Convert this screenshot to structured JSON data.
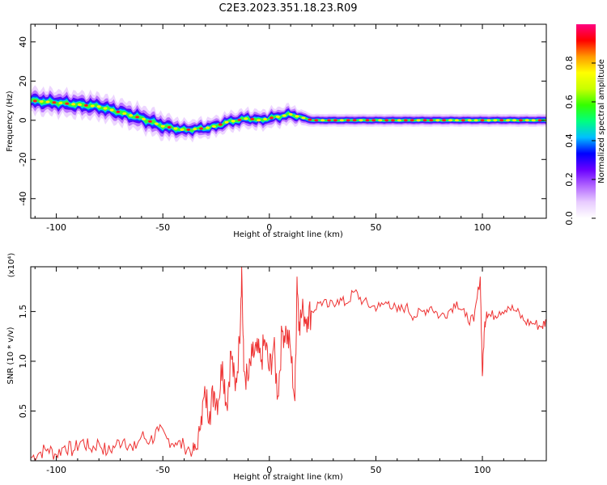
{
  "figure": {
    "title": "C2E3.2023.351.18.23.R09"
  },
  "colors": {
    "snr_line": "#ee3333",
    "frame": "#000000",
    "background": "#ffffff",
    "colormap": [
      "#ffffff",
      "#e8ccff",
      "#b266ff",
      "#6a00ff",
      "#0000ff",
      "#00bfff",
      "#00ff80",
      "#33ff00",
      "#c8ff00",
      "#ffff00",
      "#ff9900",
      "#ff0000",
      "#ff0080"
    ]
  },
  "chart_data": [
    {
      "type": "heatmap",
      "xlabel": "Height of straight line (km)",
      "ylabel": "Frequency (Hz)",
      "xlim": [
        -112,
        130
      ],
      "ylim": [
        -50,
        49
      ],
      "xticks": [
        -100,
        -50,
        0,
        50,
        100
      ],
      "xtick_labels": [
        "-100",
        "-50",
        "0",
        "50",
        "100"
      ],
      "yticks": [
        -40,
        -20,
        0,
        20,
        40
      ],
      "ytick_labels": [
        "-40",
        "-20",
        "0",
        "20",
        "40"
      ],
      "colorbar": {
        "label": "Normalized spectral amplitude",
        "range": [
          0,
          1
        ],
        "ticks": [
          0.0,
          0.2,
          0.4,
          0.6,
          0.8
        ],
        "tick_labels": [
          "0.0",
          "0.2",
          "0.4",
          "0.6",
          "0.8"
        ]
      },
      "ridge": {
        "x": [
          -112,
          -100,
          -90,
          -80,
          -70,
          -60,
          -50,
          -40,
          -30,
          -25,
          -20,
          -15,
          -10,
          -5,
          0,
          5,
          10,
          20,
          40,
          60,
          80,
          100,
          130
        ],
        "freq": [
          10,
          9,
          8,
          7,
          4,
          1,
          -3,
          -5,
          -4,
          -3,
          -1,
          0,
          1,
          0,
          1,
          2,
          3,
          0,
          0,
          0,
          0,
          0,
          0
        ],
        "width_hz": [
          4,
          4,
          4,
          4,
          4,
          4,
          4,
          3,
          3,
          3,
          3,
          3,
          3,
          3,
          3,
          3,
          3,
          2,
          2,
          2,
          2,
          2,
          2
        ]
      }
    },
    {
      "type": "line",
      "xlabel": "Height of straight line (km)",
      "ylabel": "SNR (10 * v/v)",
      "y_multiplier": "(x10⁴)",
      "xlim": [
        -112,
        130
      ],
      "ylim": [
        0,
        1.95
      ],
      "xticks": [
        -100,
        -50,
        0,
        50,
        100
      ],
      "xtick_labels": [
        "-100",
        "-50",
        "0",
        "50",
        "100"
      ],
      "yticks": [
        0.5,
        1.0,
        1.5
      ],
      "ytick_labels": [
        "0.5",
        "1.0",
        "1.5"
      ],
      "series": [
        {
          "color": "#ee3333",
          "x": [
            -112,
            -108,
            -104,
            -100,
            -96,
            -92,
            -88,
            -84,
            -80,
            -76,
            -72,
            -68,
            -64,
            -60,
            -56,
            -52,
            -48,
            -44,
            -40,
            -36,
            -34,
            -32,
            -30,
            -28,
            -26,
            -24,
            -22,
            -20,
            -18,
            -16,
            -14,
            -13,
            -12,
            -10,
            -8,
            -6,
            -4,
            -2,
            0,
            2,
            4,
            6,
            8,
            10,
            12,
            13,
            14,
            16,
            18,
            20,
            24,
            28,
            32,
            36,
            40,
            44,
            48,
            52,
            56,
            60,
            64,
            68,
            72,
            76,
            80,
            84,
            88,
            92,
            96,
            99,
            100,
            101,
            102,
            104,
            108,
            112,
            116,
            120,
            124,
            128,
            130
          ],
          "y": [
            0.03,
            0.08,
            0.12,
            0.06,
            0.15,
            0.1,
            0.2,
            0.12,
            0.18,
            0.08,
            0.16,
            0.22,
            0.1,
            0.25,
            0.2,
            0.3,
            0.22,
            0.18,
            0.15,
            0.1,
            0.12,
            0.45,
            0.65,
            0.5,
            0.7,
            0.6,
            1.0,
            0.55,
            1.1,
            0.7,
            1.2,
            1.95,
            0.9,
            0.8,
            1.05,
            1.1,
            1.0,
            1.2,
            0.9,
            1.15,
            0.65,
            1.3,
            1.3,
            1.1,
            0.6,
            1.85,
            1.4,
            1.5,
            1.45,
            1.5,
            1.6,
            1.55,
            1.62,
            1.58,
            1.7,
            1.6,
            1.55,
            1.55,
            1.6,
            1.5,
            1.55,
            1.45,
            1.5,
            1.55,
            1.45,
            1.5,
            1.6,
            1.45,
            1.4,
            1.85,
            0.85,
            1.35,
            1.5,
            1.45,
            1.5,
            1.55,
            1.5,
            1.4,
            1.38,
            1.35,
            1.4
          ]
        }
      ]
    }
  ]
}
